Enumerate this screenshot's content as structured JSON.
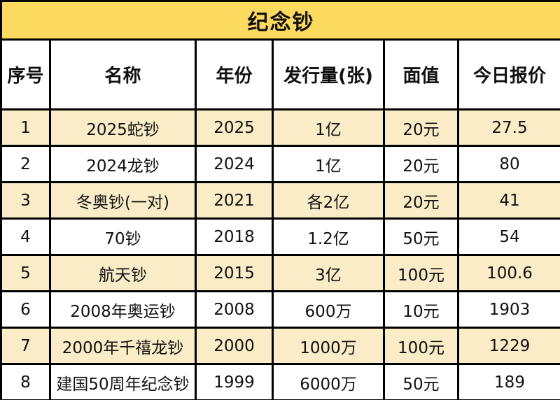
{
  "table": {
    "title": "纪念钞",
    "columns": [
      "序号",
      "名称",
      "年份",
      "发行量(张)",
      "面值",
      "今日报价"
    ],
    "rows": [
      [
        "1",
        "2025蛇钞",
        "2025",
        "1亿",
        "20元",
        "27.5"
      ],
      [
        "2",
        "2024龙钞",
        "2024",
        "1亿",
        "20元",
        "80"
      ],
      [
        "3",
        "冬奥钞(一对)",
        "2021",
        "各2亿",
        "20元",
        "41"
      ],
      [
        "4",
        "70钞",
        "2018",
        "1.2亿",
        "50元",
        "54"
      ],
      [
        "5",
        "航天钞",
        "2015",
        "3亿",
        "100元",
        "100.6"
      ],
      [
        "6",
        "2008年奥运钞",
        "2008",
        "600万",
        "10元",
        "1903"
      ],
      [
        "7",
        "2000年千禧龙钞",
        "2000",
        "1000万",
        "100元",
        "1229"
      ],
      [
        "8",
        "建国50周年纪念钞",
        "1999",
        "6000万",
        "50元",
        "189"
      ]
    ],
    "colors": {
      "title_bg": "#FCD95F",
      "alt_row_bg": "#F9ECC7",
      "row_bg": "#FFFFFF",
      "border": "#000000"
    }
  }
}
